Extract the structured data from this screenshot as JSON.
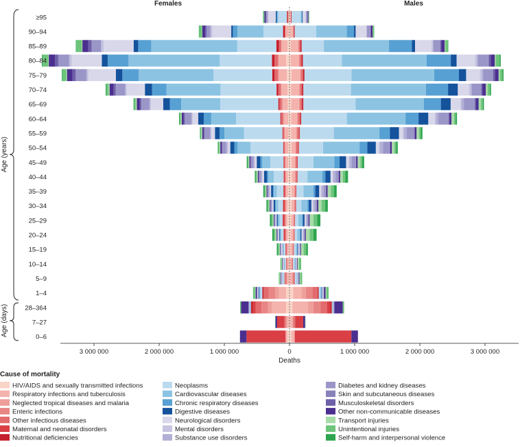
{
  "chart_data": {
    "type": "bar",
    "subtype": "population-pyramid-stacked",
    "left_title": "Females",
    "right_title": "Males",
    "xlabel": "Deaths",
    "xlim": [
      -3500000,
      3500000
    ],
    "x_ticks": [
      -3000000,
      -2000000,
      -1000000,
      0,
      1000000,
      2000000,
      3000000
    ],
    "x_tick_labels": [
      "3 000 000",
      "2 000 000",
      "1 000 000",
      "0",
      "1 000 000",
      "2 000 000",
      "3 000 000"
    ],
    "ylabel_years": "Age (years)",
    "ylabel_days": "Age (days)",
    "age_groups": [
      "≥95",
      "90–94",
      "85–89",
      "80–84",
      "75–79",
      "70–74",
      "65–69",
      "60–64",
      "55–59",
      "50–54",
      "45–49",
      "40–44",
      "35–39",
      "30–34",
      "25–29",
      "20–24",
      "15–19",
      "10–14",
      "5–9",
      "1–4",
      "28–364",
      "7–27",
      "0–6"
    ],
    "legend_title": "Cause of mortality",
    "causes": [
      {
        "name": "HIV/AIDS and sexually transmitted infections",
        "color": "#fbd4c8"
      },
      {
        "name": "Respiratory infections and tuberculosis",
        "color": "#f4b3ad"
      },
      {
        "name": "Neglected tropical diseases and malaria",
        "color": "#ee9f9a"
      },
      {
        "name": "Enteric infections",
        "color": "#e88585"
      },
      {
        "name": "Other infectious diseases",
        "color": "#e26b6d"
      },
      {
        "name": "Maternal and neonatal disorders",
        "color": "#d93f45"
      },
      {
        "name": "Nutritional deficiencies",
        "color": "#c41f2b"
      },
      {
        "name": "Neoplasms",
        "color": "#bcdaee"
      },
      {
        "name": "Cardiovascular diseases",
        "color": "#8cc3e2"
      },
      {
        "name": "Chronic respiratory diseases",
        "color": "#57a0d3"
      },
      {
        "name": "Digestive diseases",
        "color": "#14529c"
      },
      {
        "name": "Neurological disorders",
        "color": "#d9d8ea"
      },
      {
        "name": "Mental disorders",
        "color": "#c6c4e0"
      },
      {
        "name": "Substance use disorders",
        "color": "#b1afd6"
      },
      {
        "name": "Diabetes and kidney diseases",
        "color": "#9a96c8"
      },
      {
        "name": "Skin and subcutaneous diseases",
        "color": "#8882ba"
      },
      {
        "name": "Musculoskeletal disorders",
        "color": "#6e5fa9"
      },
      {
        "name": "Other non-communicable diseases",
        "color": "#4b2f8f"
      },
      {
        "name": "Transport injuries",
        "color": "#a8dba8"
      },
      {
        "name": "Unintentional injuries",
        "color": "#6dc47b"
      },
      {
        "name": "Self-harm and interpersonal violence",
        "color": "#2da44e"
      }
    ],
    "series": {
      "Females": [
        [
          5000,
          12000,
          1000,
          2000,
          5000,
          0,
          15000,
          130000,
          16000,
          10000,
          15000,
          110000,
          8000,
          6000,
          20000,
          2000,
          10000,
          18000,
          1000,
          14000,
          5000
        ],
        [
          12000,
          45000,
          1000,
          4000,
          12000,
          0,
          25000,
          300000,
          400000,
          70000,
          25000,
          290000,
          20000,
          10000,
          55000,
          4000,
          20000,
          45000,
          3000,
          45000,
          5000
        ],
        [
          30000,
          90000,
          2000,
          10000,
          30000,
          0,
          40000,
          600000,
          1320000,
          200000,
          70000,
          460000,
          30000,
          10000,
          140000,
          6000,
          50000,
          90000,
          8000,
          85000,
          8000
        ],
        [
          50000,
          115000,
          3000,
          12000,
          50000,
          0,
          40000,
          800000,
          1400000,
          320000,
          90000,
          460000,
          30000,
          12000,
          160000,
          7000,
          50000,
          95000,
          10000,
          85000,
          10000
        ],
        [
          40000,
          120000,
          5000,
          15000,
          50000,
          0,
          35000,
          900000,
          1150000,
          250000,
          100000,
          420000,
          20000,
          13000,
          160000,
          6000,
          45000,
          85000,
          12000,
          55000,
          12000
        ],
        [
          30000,
          90000,
          4000,
          10000,
          40000,
          0,
          25000,
          860000,
          830000,
          220000,
          110000,
          280000,
          12000,
          15000,
          135000,
          5000,
          35000,
          60000,
          15000,
          35000,
          10000
        ],
        [
          25000,
          80000,
          4000,
          10000,
          35000,
          0,
          18000,
          890000,
          600000,
          175000,
          100000,
          190000,
          8000,
          15000,
          120000,
          5000,
          25000,
          42000,
          18000,
          23000,
          10000
        ],
        [
          20000,
          65000,
          4000,
          10000,
          30000,
          0,
          12000,
          680000,
          380000,
          115000,
          85000,
          85000,
          5000,
          16000,
          95000,
          4000,
          17000,
          30000,
          16000,
          15000,
          10000
        ],
        [
          15000,
          55000,
          3000,
          8000,
          20000,
          0,
          8000,
          590000,
          300000,
          75000,
          70000,
          55000,
          4000,
          18000,
          80000,
          3000,
          14000,
          21000,
          15000,
          11000,
          9000
        ],
        [
          18000,
          45000,
          3000,
          8000,
          15000,
          0,
          8000,
          500000,
          200000,
          50000,
          62000,
          38000,
          5000,
          20000,
          55000,
          3000,
          10000,
          22000,
          17000,
          10000,
          11000
        ],
        [
          20000,
          35000,
          5000,
          6000,
          12000,
          10000,
          5000,
          200000,
          125000,
          30000,
          55000,
          30000,
          4000,
          18000,
          35000,
          3000,
          8000,
          15000,
          13000,
          12000,
          15000
        ],
        [
          25000,
          25000,
          5000,
          6000,
          12000,
          15000,
          3000,
          150000,
          85000,
          20000,
          45000,
          25000,
          4000,
          18000,
          25000,
          3000,
          8000,
          13000,
          15000,
          15000,
          15000
        ],
        [
          25000,
          25000,
          4000,
          6000,
          10000,
          20000,
          3000,
          100000,
          50000,
          10000,
          30000,
          18000,
          4000,
          12000,
          15000,
          2000,
          6000,
          12000,
          15000,
          15000,
          20000
        ],
        [
          30000,
          22000,
          6000,
          6000,
          10000,
          25000,
          3000,
          70000,
          40000,
          8000,
          25000,
          15000,
          4000,
          10000,
          12000,
          2000,
          5000,
          11000,
          15000,
          15000,
          20000
        ],
        [
          35000,
          18000,
          6000,
          6000,
          10000,
          27000,
          3000,
          45000,
          25000,
          5000,
          15000,
          12000,
          4000,
          8000,
          8000,
          2000,
          4000,
          10000,
          15000,
          18000,
          25000
        ],
        [
          25000,
          20000,
          4000,
          8000,
          8000,
          25000,
          2000,
          35000,
          15000,
          5000,
          10000,
          12000,
          5000,
          5000,
          5000,
          2000,
          3000,
          10000,
          20000,
          20000,
          25000
        ],
        [
          10000,
          20000,
          4000,
          8000,
          8000,
          10000,
          2000,
          25000,
          12000,
          3000,
          5000,
          15000,
          3000,
          3000,
          3000,
          2000,
          2000,
          10000,
          15000,
          15000,
          20000
        ],
        [
          5000,
          20000,
          6000,
          10000,
          10000,
          0,
          3000,
          20000,
          6000,
          3000,
          3000,
          12000,
          0,
          0,
          3000,
          1000,
          2000,
          8000,
          10000,
          12000,
          5000
        ],
        [
          5000,
          25000,
          10000,
          17000,
          15000,
          0,
          5000,
          20000,
          5000,
          3000,
          3000,
          15000,
          0,
          0,
          3000,
          1000,
          2000,
          10000,
          10000,
          15000,
          0
        ],
        [
          50000,
          110000,
          60000,
          100000,
          75000,
          2000,
          20000,
          30000,
          15000,
          5000,
          10000,
          15000,
          0,
          0,
          5000,
          1000,
          2000,
          20000,
          10000,
          30000,
          0
        ],
        [
          50000,
          220000,
          60000,
          100000,
          90000,
          40000,
          30000,
          10000,
          5000,
          0,
          5000,
          10000,
          0,
          0,
          5000,
          3000,
          0,
          115000,
          0,
          15000,
          0
        ],
        [
          5000,
          30000,
          10000,
          15000,
          20000,
          110000,
          0,
          0,
          0,
          0,
          0,
          0,
          0,
          0,
          0,
          0,
          0,
          25000,
          0,
          5000,
          0
        ],
        [
          30000,
          30000,
          0,
          0,
          0,
          600000,
          0,
          0,
          0,
          0,
          0,
          0,
          0,
          0,
          0,
          0,
          0,
          100000,
          0,
          0,
          0
        ]
      ],
      "Males": [
        [
          3000,
          15000,
          1000,
          2000,
          3000,
          0,
          9000,
          140000,
          12000,
          8000,
          10000,
          45000,
          2000,
          4000,
          20000,
          2000,
          3000,
          12000,
          1000,
          8000,
          2000
        ],
        [
          8000,
          45000,
          2000,
          5000,
          8000,
          0,
          12000,
          330000,
          470000,
          110000,
          25000,
          160000,
          8000,
          6000,
          50000,
          3000,
          8000,
          25000,
          2000,
          20000,
          3000
        ],
        [
          20000,
          110000,
          5000,
          12000,
          20000,
          0,
          20000,
          340000,
          1000000,
          350000,
          50000,
          250000,
          20000,
          10000,
          100000,
          5000,
          20000,
          50000,
          10000,
          40000,
          5000
        ],
        [
          20000,
          120000,
          5000,
          15000,
          25000,
          0,
          20000,
          600000,
          1300000,
          370000,
          90000,
          280000,
          30000,
          15000,
          160000,
          6000,
          30000,
          65000,
          15000,
          60000,
          15000
        ],
        [
          30000,
          130000,
          5000,
          15000,
          30000,
          0,
          20000,
          720000,
          1270000,
          380000,
          110000,
          210000,
          30000,
          20000,
          150000,
          6000,
          28000,
          55000,
          20000,
          40000,
          15000
        ],
        [
          25000,
          120000,
          5000,
          15000,
          30000,
          0,
          18000,
          730000,
          1150000,
          340000,
          150000,
          170000,
          25000,
          20000,
          140000,
          5000,
          20000,
          50000,
          30000,
          35000,
          15000
        ],
        [
          25000,
          120000,
          5000,
          15000,
          30000,
          0,
          18000,
          800000,
          1050000,
          260000,
          150000,
          150000,
          15000,
          40000,
          160000,
          5000,
          20000,
          40000,
          35000,
          30000,
          15000
        ],
        [
          25000,
          90000,
          5000,
          15000,
          30000,
          0,
          15000,
          700000,
          900000,
          200000,
          150000,
          100000,
          15000,
          40000,
          150000,
          5000,
          15000,
          30000,
          40000,
          25000,
          20000
        ],
        [
          25000,
          80000,
          5000,
          10000,
          30000,
          0,
          10000,
          520000,
          700000,
          160000,
          140000,
          60000,
          10000,
          50000,
          110000,
          5000,
          10000,
          25000,
          40000,
          25000,
          25000
        ],
        [
          30000,
          60000,
          5000,
          10000,
          30000,
          0,
          10000,
          370000,
          560000,
          120000,
          130000,
          45000,
          15000,
          50000,
          100000,
          3000,
          8000,
          25000,
          40000,
          25000,
          25000
        ],
        [
          30000,
          50000,
          10000,
          10000,
          20000,
          0,
          8000,
          240000,
          320000,
          80000,
          100000,
          40000,
          10000,
          40000,
          60000,
          3000,
          5000,
          20000,
          40000,
          30000,
          30000
        ],
        [
          35000,
          45000,
          10000,
          10000,
          20000,
          0,
          5000,
          150000,
          230000,
          45000,
          80000,
          30000,
          10000,
          40000,
          40000,
          3000,
          5000,
          20000,
          40000,
          40000,
          40000
        ],
        [
          30000,
          40000,
          8000,
          8000,
          15000,
          0,
          5000,
          110000,
          150000,
          30000,
          60000,
          25000,
          10000,
          35000,
          30000,
          3000,
          5000,
          20000,
          50000,
          50000,
          40000
        ],
        [
          30000,
          35000,
          8000,
          8000,
          15000,
          0,
          5000,
          80000,
          95000,
          20000,
          40000,
          20000,
          10000,
          30000,
          20000,
          3000,
          4000,
          20000,
          50000,
          55000,
          40000
        ],
        [
          25000,
          30000,
          6000,
          8000,
          13000,
          0,
          4000,
          50000,
          60000,
          10000,
          25000,
          15000,
          8000,
          20000,
          12000,
          3000,
          3000,
          17000,
          60000,
          55000,
          50000
        ],
        [
          20000,
          30000,
          6000,
          8000,
          13000,
          0,
          4000,
          40000,
          40000,
          8000,
          15000,
          15000,
          8000,
          15000,
          8000,
          3000,
          3000,
          15000,
          60000,
          55000,
          50000
        ],
        [
          15000,
          25000,
          6000,
          6000,
          12000,
          0,
          3000,
          30000,
          20000,
          5000,
          10000,
          15000,
          3000,
          5000,
          5000,
          2000,
          3000,
          12000,
          40000,
          40000,
          25000
        ],
        [
          5000,
          20000,
          6000,
          10000,
          10000,
          0,
          3000,
          25000,
          8000,
          3000,
          4000,
          15000,
          0,
          0,
          3000,
          1000,
          2000,
          10000,
          20000,
          25000,
          7000
        ],
        [
          5000,
          30000,
          10000,
          17000,
          15000,
          0,
          5000,
          25000,
          7000,
          3000,
          3000,
          15000,
          0,
          0,
          3000,
          1000,
          2000,
          12000,
          15000,
          20000,
          5000
        ],
        [
          55000,
          130000,
          65000,
          100000,
          80000,
          2000,
          15000,
          25000,
          15000,
          5000,
          8000,
          20000,
          0,
          0,
          5000,
          1000,
          3000,
          25000,
          12000,
          35000,
          0
        ],
        [
          45000,
          240000,
          80000,
          110000,
          100000,
          50000,
          25000,
          10000,
          5000,
          0,
          5000,
          10000,
          0,
          0,
          5000,
          3000,
          0,
          130000,
          0,
          20000,
          0
        ],
        [
          5000,
          35000,
          10000,
          15000,
          25000,
          120000,
          0,
          0,
          0,
          0,
          0,
          0,
          0,
          0,
          0,
          0,
          0,
          30000,
          0,
          5000,
          0
        ],
        [
          30000,
          50000,
          0,
          0,
          0,
          870000,
          0,
          0,
          0,
          0,
          0,
          0,
          0,
          0,
          0,
          0,
          0,
          100000,
          0,
          0,
          0
        ]
      ]
    }
  }
}
